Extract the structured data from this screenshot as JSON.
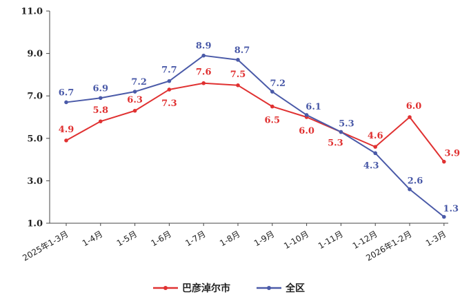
{
  "chart_data": {
    "type": "line",
    "categories": [
      "2025年1-3月",
      "1-4月",
      "1-5月",
      "1-6月",
      "1-7月",
      "1-8月",
      "1-9月",
      "1-10月",
      "1-11月",
      "1-12月",
      "2026年1-2月",
      "1-3月"
    ],
    "series": [
      {
        "name": "巴彦淖尔市",
        "color": "#e03131",
        "values": [
          4.9,
          5.8,
          6.3,
          7.3,
          7.6,
          7.5,
          6.5,
          6.0,
          5.3,
          4.6,
          6.0,
          3.9
        ],
        "labels": [
          "4.9",
          "5.8",
          "6.3",
          "7.3",
          "7.6",
          "7.5",
          "6.5",
          "6.0",
          "5.3",
          "4.6",
          "6.0",
          "3.9"
        ]
      },
      {
        "name": "全区",
        "color": "#4a5aa8",
        "values": [
          6.7,
          6.9,
          7.2,
          7.7,
          8.9,
          8.7,
          7.2,
          6.1,
          5.3,
          4.3,
          2.6,
          1.3
        ],
        "labels": [
          "6.7",
          "6.9",
          "7.2",
          "7.7",
          "8.9",
          "8.7",
          "7.2",
          "6.1",
          "5.3",
          "4.3",
          "2.6",
          "1.3"
        ]
      }
    ],
    "yticks": [
      "1.0",
      "3.0",
      "5.0",
      "7.0",
      "9.0",
      "11.0"
    ],
    "ylim": [
      1.0,
      11.0
    ],
    "grid": false,
    "legend_position": "bottom"
  }
}
